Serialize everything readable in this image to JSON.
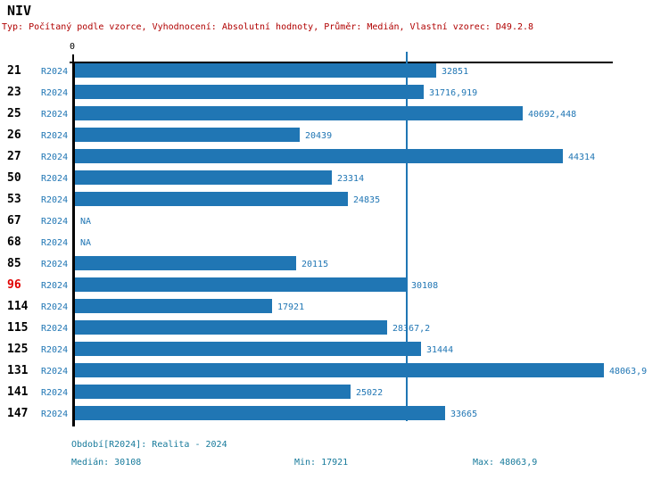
{
  "window": {
    "title": "NIV"
  },
  "subtitle": "Typ: Počítaný podle vzorce, Vyhodnocení: Absolutní hodnoty, Průměr: Medián, Vlastní vzorec: D49.2.8",
  "axis": {
    "zero_label": "0"
  },
  "chart_data": {
    "type": "bar",
    "orientation": "horizontal",
    "title": "NIV",
    "series_label": "R2024",
    "categories": [
      "21",
      "23",
      "25",
      "26",
      "27",
      "50",
      "53",
      "67",
      "68",
      "85",
      "96",
      "114",
      "115",
      "125",
      "131",
      "141",
      "147"
    ],
    "values": [
      32851,
      31716.919,
      40692.448,
      20439,
      44314,
      23314,
      24835,
      null,
      null,
      20115,
      30108,
      17921,
      28367.2,
      31444,
      48063.9,
      25022,
      33665
    ],
    "value_labels": [
      "32851",
      "31716,919",
      "40692,448",
      "20439",
      "44314",
      "23314",
      "24835",
      "NA",
      "NA",
      "20115",
      "30108",
      "17921",
      "28367,2",
      "31444",
      "48063,9",
      "25022",
      "33665"
    ],
    "xlim": [
      0,
      48063.9
    ],
    "median_line_value": 30108,
    "highlighted_category": "96",
    "grid": false,
    "legend_position": "none"
  },
  "footer": {
    "period": "Období[R2024]: Realita - 2024",
    "median": "Medián: 30108",
    "min": "Min: 17921",
    "max": "Max: 48063,9"
  },
  "colors": {
    "bar": "#2076b4",
    "label_blue": "#2076b4",
    "highlight_red": "#e00000",
    "subtitle_red": "#b00000",
    "footer_teal": "#177a9b",
    "axis_black": "#000000"
  }
}
